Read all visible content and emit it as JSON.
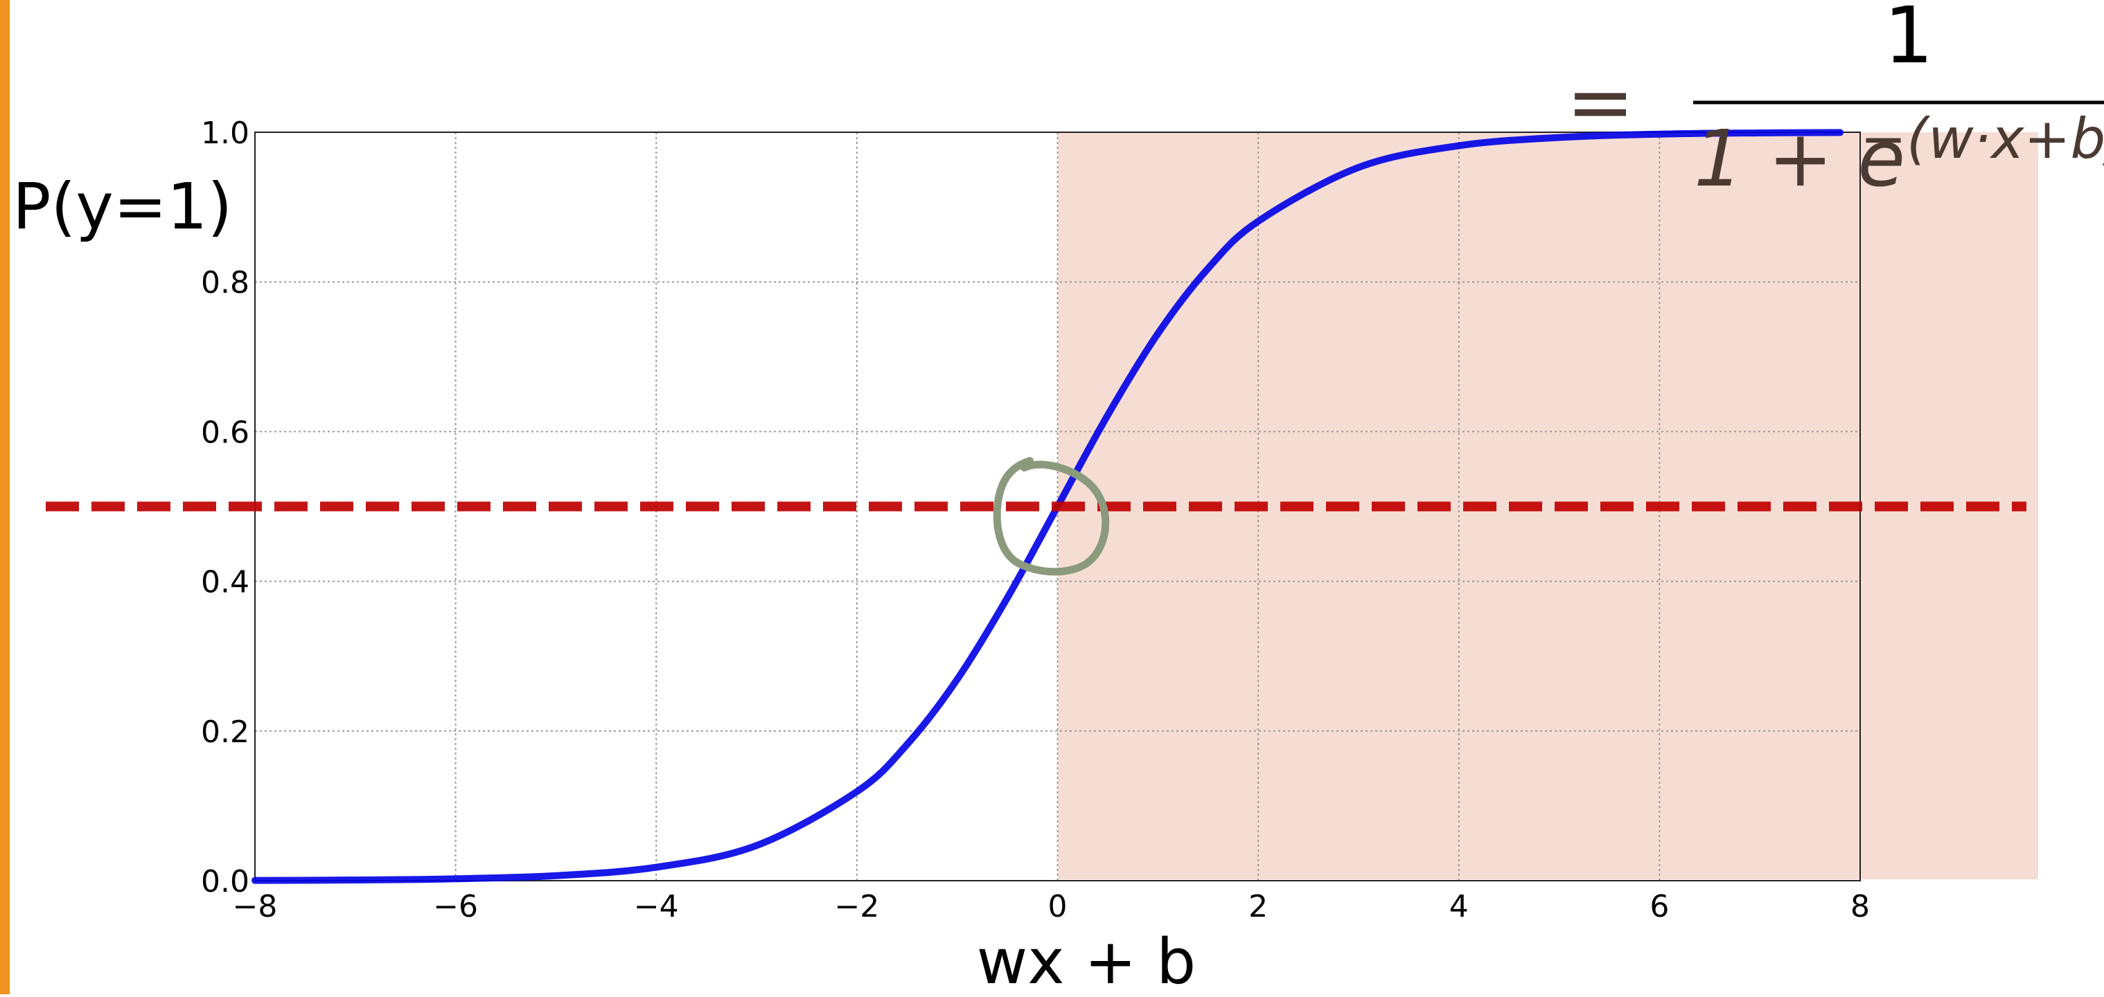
{
  "colors": {
    "accent_bar": "#F0921E",
    "curve": "#0000E6",
    "threshold": "#C00000",
    "shaded_region": "#F5DDD4",
    "annotation_circle": "#8B9A7C",
    "equation": "#4A3A32"
  },
  "equation": {
    "equals": "=",
    "numerator": "1",
    "denominator_base": "1 + e",
    "denominator_exponent": "−(w·x+b)"
  },
  "chart_data": {
    "type": "line",
    "title": "",
    "xlabel": "wx + b",
    "ylabel": "P(y=1)",
    "xlim": [
      -8,
      8
    ],
    "ylim": [
      0,
      1
    ],
    "x_ticks": [
      -8,
      -6,
      -4,
      -2,
      0,
      2,
      4,
      6,
      8
    ],
    "x_tick_labels": [
      "−8",
      "−6",
      "−4",
      "−2",
      "0",
      "2",
      "4",
      "6",
      "8"
    ],
    "y_ticks": [
      0,
      0.2,
      0.4,
      0.6,
      0.8,
      1.0
    ],
    "y_tick_labels": [
      "0.0",
      "0.2",
      "0.4",
      "0.6",
      "0.8",
      "1.0"
    ],
    "grid": true,
    "series": [
      {
        "function": "sigmoid",
        "x": [
          -8,
          -7,
          -6,
          -5,
          -4,
          -3,
          -2,
          -1.5,
          -1,
          -0.5,
          0,
          0.5,
          1,
          1.5,
          2,
          3,
          4,
          5,
          6,
          7,
          7.8
        ],
        "y": [
          0.0003,
          0.0009,
          0.0025,
          0.0067,
          0.018,
          0.047,
          0.119,
          0.182,
          0.269,
          0.378,
          0.5,
          0.622,
          0.731,
          0.818,
          0.881,
          0.953,
          0.982,
          0.993,
          0.9975,
          0.9991,
          0.9996
        ]
      }
    ],
    "threshold_y": 0.5,
    "shaded_x_range": [
      0,
      8
    ],
    "annotation": "hand-drawn circle around (0, 0.5)"
  }
}
